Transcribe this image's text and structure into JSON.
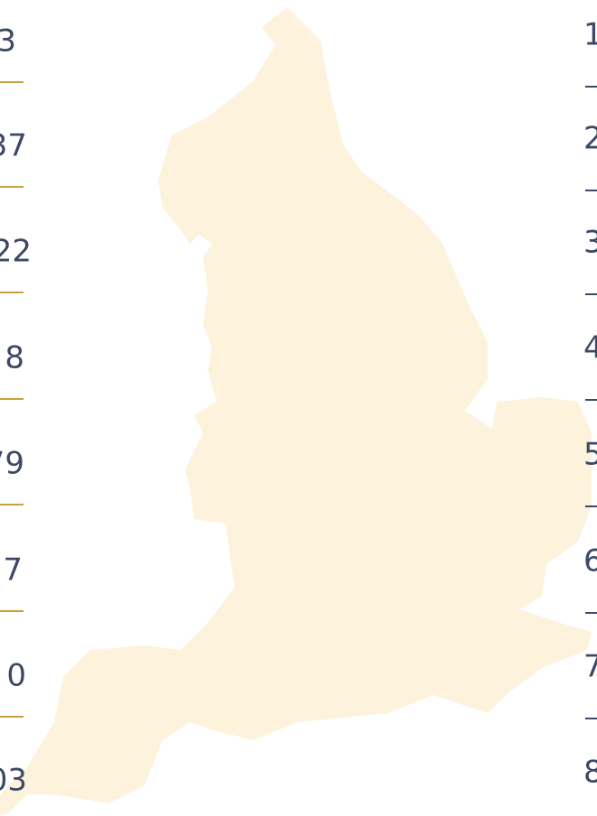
{
  "left_labels": [
    "3",
    "37",
    "22",
    "8",
    "79",
    "7",
    "0",
    "03"
  ],
  "right_labels": [
    "1",
    "2",
    "3",
    "4",
    "5",
    "6",
    "7",
    "8"
  ]
}
